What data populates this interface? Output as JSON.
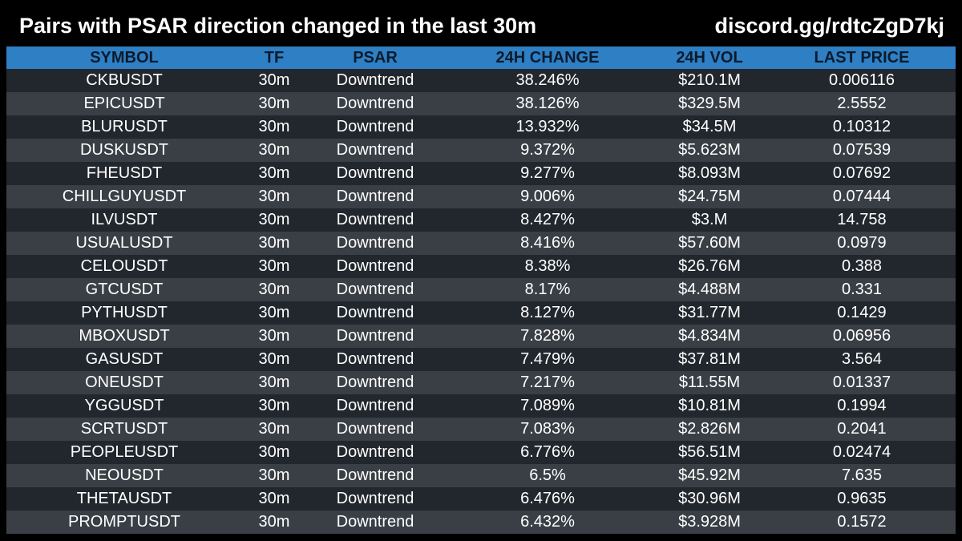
{
  "header": {
    "title": "Pairs with PSAR direction changed in the last 30m",
    "discord": "discord.gg/rdtcZgD7kj"
  },
  "chart_data": {
    "type": "table",
    "title": "Pairs with PSAR direction changed in the last 30m",
    "columns": [
      "SYMBOL",
      "TF",
      "PSAR",
      "24H CHANGE",
      "24H VOL",
      "LAST PRICE"
    ],
    "rows": [
      [
        "CKBUSDT",
        "30m",
        "Downtrend",
        "38.246%",
        "$210.1M",
        "0.006116"
      ],
      [
        "EPICUSDT",
        "30m",
        "Downtrend",
        "38.126%",
        "$329.5M",
        "2.5552"
      ],
      [
        "BLURUSDT",
        "30m",
        "Downtrend",
        "13.932%",
        "$34.5M",
        "0.10312"
      ],
      [
        "DUSKUSDT",
        "30m",
        "Downtrend",
        "9.372%",
        "$5.623M",
        "0.07539"
      ],
      [
        "FHEUSDT",
        "30m",
        "Downtrend",
        "9.277%",
        "$8.093M",
        "0.07692"
      ],
      [
        "CHILLGUYUSDT",
        "30m",
        "Downtrend",
        "9.006%",
        "$24.75M",
        "0.07444"
      ],
      [
        "ILVUSDT",
        "30m",
        "Downtrend",
        "8.427%",
        "$3.M",
        "14.758"
      ],
      [
        "USUALUSDT",
        "30m",
        "Downtrend",
        "8.416%",
        "$57.60M",
        "0.0979"
      ],
      [
        "CELOUSDT",
        "30m",
        "Downtrend",
        "8.38%",
        "$26.76M",
        "0.388"
      ],
      [
        "GTCUSDT",
        "30m",
        "Downtrend",
        "8.17%",
        "$4.488M",
        "0.331"
      ],
      [
        "PYTHUSDT",
        "30m",
        "Downtrend",
        "8.127%",
        "$31.77M",
        "0.1429"
      ],
      [
        "MBOXUSDT",
        "30m",
        "Downtrend",
        "7.828%",
        "$4.834M",
        "0.06956"
      ],
      [
        "GASUSDT",
        "30m",
        "Downtrend",
        "7.479%",
        "$37.81M",
        "3.564"
      ],
      [
        "ONEUSDT",
        "30m",
        "Downtrend",
        "7.217%",
        "$11.55M",
        "0.01337"
      ],
      [
        "YGGUSDT",
        "30m",
        "Downtrend",
        "7.089%",
        "$10.81M",
        "0.1994"
      ],
      [
        "SCRTUSDT",
        "30m",
        "Downtrend",
        "7.083%",
        "$2.826M",
        "0.2041"
      ],
      [
        "PEOPLEUSDT",
        "30m",
        "Downtrend",
        "6.776%",
        "$56.51M",
        "0.02474"
      ],
      [
        "NEOUSDT",
        "30m",
        "Downtrend",
        "6.5%",
        "$45.92M",
        "7.635"
      ],
      [
        "THETAUSDT",
        "30m",
        "Downtrend",
        "6.476%",
        "$30.96M",
        "0.9635"
      ],
      [
        "PROMPTUSDT",
        "30m",
        "Downtrend",
        "6.432%",
        "$3.928M",
        "0.1572"
      ]
    ]
  },
  "colors": {
    "background": "#000000",
    "header_bar": "#2f7fc4",
    "header_text": "#0c1b2c",
    "row_odd": "#22272d",
    "row_even": "#3a3f45",
    "cell_text": "#ffffff"
  }
}
